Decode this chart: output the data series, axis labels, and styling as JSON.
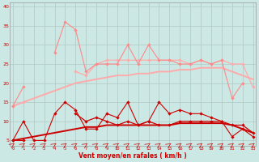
{
  "x": [
    0,
    1,
    2,
    3,
    4,
    5,
    6,
    7,
    8,
    9,
    10,
    11,
    12,
    13,
    14,
    15,
    16,
    17,
    18,
    19,
    20,
    21,
    22,
    23
  ],
  "rafales_max": [
    14,
    19,
    null,
    null,
    28,
    36,
    34,
    23,
    25,
    25,
    25,
    30,
    25,
    30,
    26,
    26,
    25,
    25,
    26,
    25,
    26,
    16,
    20,
    null
  ],
  "rafales_moy": [
    14,
    15,
    null,
    null,
    null,
    null,
    23,
    22,
    25,
    26,
    26,
    26,
    26,
    26,
    26,
    26,
    26,
    25,
    26,
    25,
    26,
    25,
    25,
    19
  ],
  "rafales_trend": [
    14,
    15,
    16,
    17,
    18,
    19,
    20,
    20.5,
    21,
    21.5,
    22,
    22,
    22.5,
    22.5,
    23,
    23,
    23.5,
    23.5,
    24,
    24,
    24,
    23,
    22,
    21
  ],
  "vent_max": [
    5,
    10,
    5,
    5,
    12,
    15,
    13,
    8,
    8,
    12,
    11,
    15,
    9,
    10,
    15,
    12,
    13,
    12,
    12,
    11,
    10,
    6,
    8,
    6
  ],
  "vent_moy": [
    5,
    5,
    null,
    null,
    null,
    null,
    12,
    10,
    11,
    10,
    9,
    10,
    9,
    10,
    9,
    9,
    10,
    10,
    10,
    10,
    10,
    9,
    9,
    7
  ],
  "vent_trend": [
    5,
    5.5,
    6,
    6.5,
    7,
    7.5,
    8,
    8.5,
    8.5,
    9,
    9,
    9,
    9,
    9,
    9,
    9,
    9.5,
    9.5,
    9.5,
    9.5,
    9.5,
    9,
    8,
    7
  ],
  "bg_color": "#cce8e4",
  "grid_color": "#b0c8c4",
  "pink_light": "#ffaaaa",
  "pink_dark": "#ff8888",
  "red_dark": "#cc0000",
  "red_medium": "#dd2222",
  "xlabel": "Vent moyen/en rafales ( km/h )",
  "xticks": [
    0,
    1,
    2,
    3,
    4,
    5,
    6,
    7,
    8,
    9,
    10,
    11,
    12,
    13,
    14,
    15,
    16,
    17,
    18,
    19,
    20,
    21,
    22,
    23
  ],
  "yticks": [
    5,
    10,
    15,
    20,
    25,
    30,
    35,
    40
  ],
  "xlim": [
    -0.3,
    23.3
  ],
  "ylim": [
    3.5,
    41
  ]
}
